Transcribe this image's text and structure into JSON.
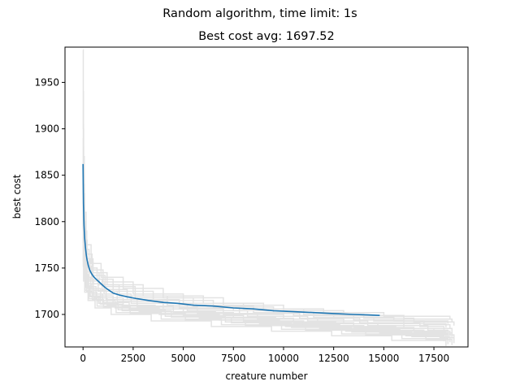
{
  "chart_data": {
    "type": "line",
    "suptitle": "Random algorithm, time limit: 1s",
    "title": "Best cost avg: 1697.52",
    "xlabel": "creature number",
    "ylabel": "best cost",
    "xlim": [
      -900,
      19200
    ],
    "ylim": [
      1665,
      1988
    ],
    "xticks": [
      0,
      2500,
      5000,
      7500,
      10000,
      12500,
      15000,
      17500
    ],
    "yticks": [
      1700,
      1750,
      1800,
      1850,
      1900,
      1950
    ],
    "grid": false,
    "colors": {
      "average": "#1f77b4",
      "runs": "#e3e3e3"
    },
    "series": [
      {
        "role": "average",
        "x": [
          0,
          20,
          50,
          80,
          120,
          160,
          200,
          260,
          330,
          420,
          520,
          650,
          800,
          950,
          1100,
          1300,
          1500,
          1800,
          2200,
          2700,
          3300,
          4000,
          4700,
          5500,
          6500,
          7500,
          8500,
          9500,
          10500,
          11500,
          12500,
          13500,
          14200,
          14800
        ],
        "y": [
          1862,
          1820,
          1796,
          1782,
          1772,
          1764,
          1759,
          1753,
          1748,
          1744,
          1741,
          1738,
          1735,
          1732,
          1729,
          1726,
          1723,
          1721,
          1719,
          1717,
          1715,
          1713,
          1712,
          1710,
          1709,
          1707,
          1706,
          1704,
          1703,
          1702,
          1701,
          1700,
          1699.5,
          1699
        ]
      }
    ],
    "runs": [
      {
        "x": [
          0,
          10,
          30,
          80,
          200,
          500,
          1200,
          3000,
          6000,
          9000,
          12000,
          15000,
          18300
        ],
        "y": [
          1985,
          1900,
          1830,
          1780,
          1760,
          1745,
          1732,
          1720,
          1712,
          1706,
          1702,
          1698,
          1695
        ]
      },
      {
        "x": [
          0,
          20,
          60,
          150,
          400,
          900,
          2000,
          4000,
          7000,
          10000,
          13000,
          16000,
          18400
        ],
        "y": [
          1940,
          1870,
          1810,
          1775,
          1755,
          1740,
          1728,
          1718,
          1710,
          1704,
          1699,
          1695,
          1692
        ]
      },
      {
        "x": [
          0,
          15,
          40,
          100,
          300,
          700,
          1500,
          3500,
          6500,
          9500,
          12500,
          15500,
          18200
        ],
        "y": [
          1920,
          1850,
          1800,
          1770,
          1750,
          1738,
          1725,
          1715,
          1708,
          1702,
          1697,
          1693,
          1690
        ]
      },
      {
        "x": [
          0,
          25,
          70,
          180,
          450,
          1000,
          2500,
          5000,
          8000,
          11000,
          14000,
          16500,
          18500
        ],
        "y": [
          1905,
          1840,
          1790,
          1765,
          1748,
          1735,
          1722,
          1712,
          1706,
          1700,
          1696,
          1692,
          1688
        ]
      },
      {
        "x": [
          0,
          10,
          50,
          120,
          350,
          800,
          1800,
          4200,
          7500,
          10500,
          13500,
          16000,
          18100
        ],
        "y": [
          1890,
          1830,
          1785,
          1760,
          1745,
          1732,
          1720,
          1710,
          1704,
          1699,
          1694,
          1690,
          1686
        ]
      },
      {
        "x": [
          0,
          30,
          80,
          200,
          500,
          1100,
          2600,
          5500,
          8500,
          11500,
          14500,
          17000,
          18300
        ],
        "y": [
          1880,
          1820,
          1780,
          1756,
          1742,
          1730,
          1718,
          1709,
          1702,
          1697,
          1693,
          1689,
          1684
        ]
      },
      {
        "x": [
          0,
          20,
          60,
          160,
          420,
          950,
          2200,
          4800,
          7800,
          10800,
          13800,
          16800,
          18000
        ],
        "y": [
          1870,
          1810,
          1775,
          1752,
          1738,
          1727,
          1716,
          1707,
          1701,
          1696,
          1691,
          1687,
          1682
        ]
      },
      {
        "x": [
          0,
          15,
          45,
          110,
          300,
          750,
          1700,
          4000,
          7000,
          10000,
          13000,
          16000,
          18400
        ],
        "y": [
          1860,
          1805,
          1770,
          1750,
          1736,
          1725,
          1714,
          1706,
          1700,
          1695,
          1690,
          1685,
          1680
        ]
      },
      {
        "x": [
          0,
          25,
          75,
          190,
          480,
          1050,
          2400,
          5200,
          8200,
          11200,
          14200,
          17200,
          18200
        ],
        "y": [
          1850,
          1798,
          1766,
          1746,
          1733,
          1722,
          1712,
          1704,
          1698,
          1693,
          1688,
          1683,
          1678
        ]
      },
      {
        "x": [
          0,
          10,
          40,
          90,
          260,
          650,
          1500,
          3600,
          6600,
          9600,
          12600,
          15600,
          18300
        ],
        "y": [
          1842,
          1792,
          1762,
          1743,
          1730,
          1720,
          1710,
          1703,
          1697,
          1692,
          1687,
          1682,
          1677
        ]
      },
      {
        "x": [
          0,
          20,
          55,
          140,
          380,
          880,
          2000,
          4500,
          7500,
          10500,
          13500,
          16500,
          18100
        ],
        "y": [
          1835,
          1787,
          1758,
          1740,
          1728,
          1718,
          1709,
          1702,
          1696,
          1691,
          1686,
          1681,
          1676
        ]
      },
      {
        "x": [
          0,
          30,
          85,
          210,
          520,
          1150,
          2700,
          5700,
          8700,
          11700,
          14700,
          17500,
          18400
        ],
        "y": [
          1828,
          1782,
          1755,
          1738,
          1726,
          1716,
          1708,
          1701,
          1695,
          1690,
          1685,
          1680,
          1674
        ]
      },
      {
        "x": [
          0,
          15,
          35,
          95,
          280,
          680,
          1600,
          3800,
          6800,
          9800,
          12800,
          15800,
          18200
        ],
        "y": [
          1820,
          1778,
          1752,
          1735,
          1724,
          1715,
          1707,
          1700,
          1694,
          1689,
          1684,
          1679,
          1673
        ]
      },
      {
        "x": [
          0,
          25,
          65,
          170,
          440,
          980,
          2300,
          5000,
          8000,
          11000,
          14000,
          17000,
          18500
        ],
        "y": [
          1812,
          1774,
          1749,
          1733,
          1722,
          1713,
          1706,
          1699,
          1693,
          1688,
          1683,
          1678,
          1672
        ]
      },
      {
        "x": [
          0,
          10,
          45,
          115,
          330,
          780,
          1750,
          4100,
          7100,
          10100,
          13100,
          16100,
          18000
        ],
        "y": [
          1805,
          1770,
          1746,
          1731,
          1720,
          1712,
          1705,
          1698,
          1692,
          1687,
          1682,
          1677,
          1671
        ]
      },
      {
        "x": [
          0,
          20,
          50,
          130,
          360,
          860,
          1950,
          4400,
          7400,
          10400,
          13400,
          16400,
          18300
        ],
        "y": [
          1798,
          1766,
          1744,
          1729,
          1719,
          1711,
          1704,
          1697,
          1691,
          1686,
          1681,
          1676,
          1670
        ]
      },
      {
        "x": [
          0,
          30,
          90,
          220,
          540,
          1200,
          2800,
          5800,
          8800,
          11800,
          14800,
          17800,
          18500
        ],
        "y": [
          1790,
          1762,
          1742,
          1728,
          1718,
          1710,
          1703,
          1696,
          1690,
          1685,
          1680,
          1675,
          1669
        ]
      },
      {
        "x": [
          0,
          15,
          40,
          100,
          290,
          700,
          1650,
          3900,
          6900,
          9900,
          12900,
          15900,
          18200
        ],
        "y": [
          1783,
          1758,
          1740,
          1726,
          1717,
          1709,
          1702,
          1695,
          1689,
          1684,
          1679,
          1674,
          1668
        ]
      },
      {
        "x": [
          0,
          25,
          70,
          180,
          460,
          1020,
          2350,
          5100,
          8100,
          11100,
          14100,
          17100,
          18400
        ],
        "y": [
          1776,
          1755,
          1738,
          1725,
          1716,
          1708,
          1701,
          1694,
          1688,
          1683,
          1678,
          1673,
          1667
        ]
      },
      {
        "x": [
          0,
          10,
          30,
          85,
          250,
          600,
          1400,
          3400,
          6400,
          9400,
          12400,
          15400,
          18100
        ],
        "y": [
          1770,
          1752,
          1736,
          1724,
          1715,
          1707,
          1700,
          1693,
          1687,
          1682,
          1677,
          1672,
          1666
        ]
      }
    ]
  }
}
